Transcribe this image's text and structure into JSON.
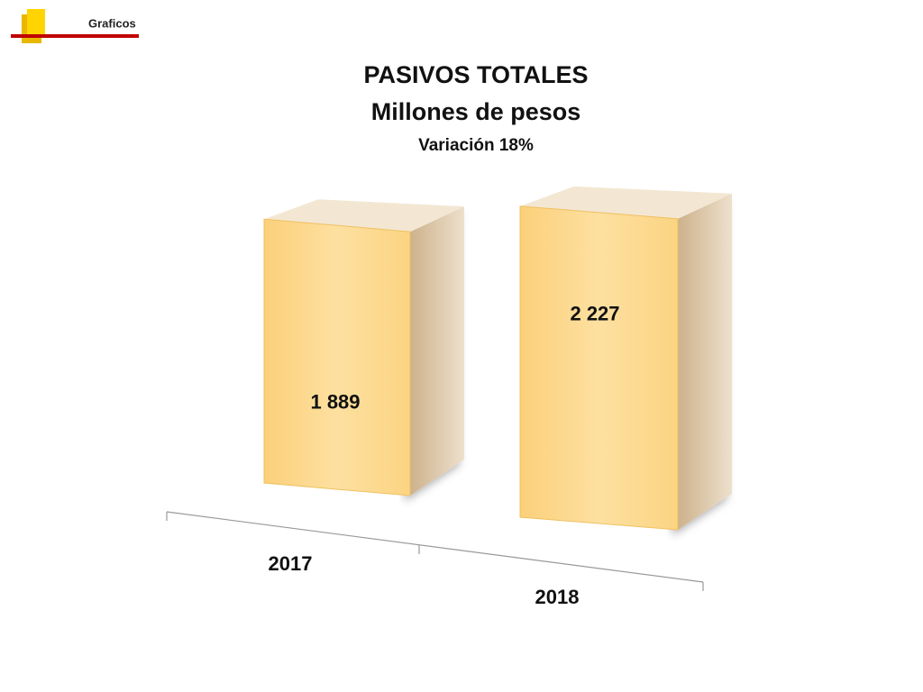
{
  "header": "Graficos",
  "chart_data": {
    "type": "bar3d",
    "title": "PASIVOS TOTALES",
    "subtitle": "Millones de pesos",
    "annotation": "Variación 18%",
    "categories": [
      "2017",
      "2018"
    ],
    "values": [
      1889,
      2227
    ],
    "value_labels": [
      "1 889",
      "2 227"
    ],
    "color": "#fdd98a"
  }
}
